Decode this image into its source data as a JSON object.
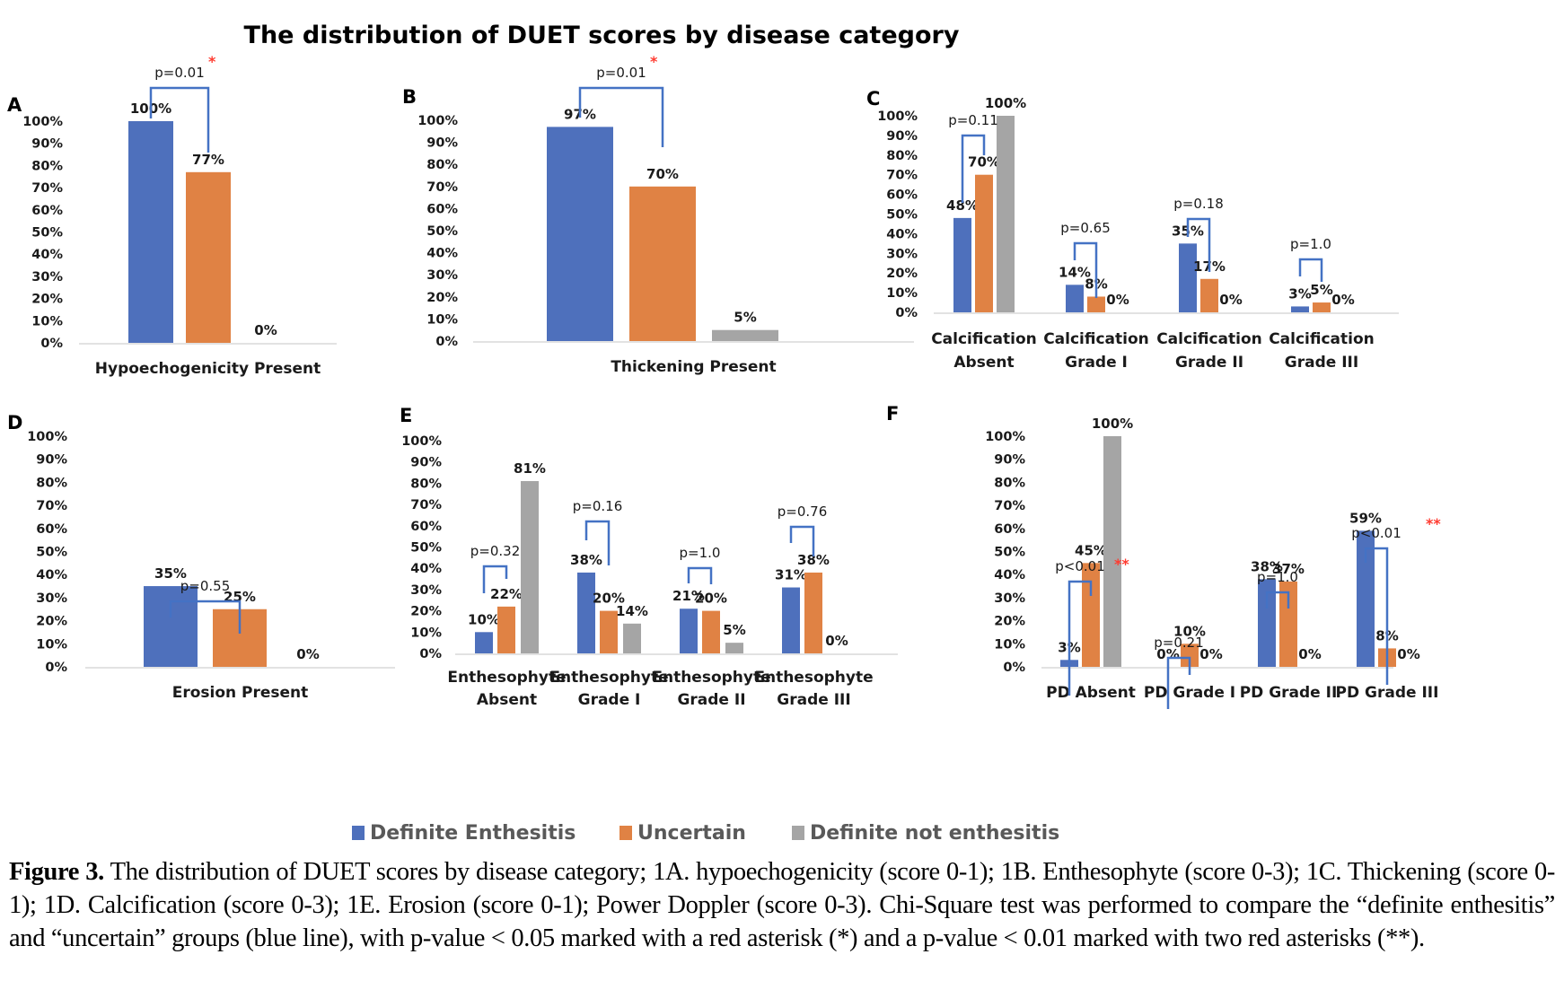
{
  "figure_title": "The distribution of DUET scores by disease category",
  "legend": [
    {
      "name": "Definite Enthesitis",
      "color": "#4E70BC"
    },
    {
      "name": "Uncertain",
      "color": "#E08244"
    },
    {
      "name": "Definite not enthesitis",
      "color": "#A5A5A5"
    }
  ],
  "colors": {
    "bracket": "#4472C4",
    "asterisk": "#FF3B30",
    "axis_line": "#D9D9D9",
    "text": "#1a1a1a"
  },
  "caption": {
    "label": "Figure 3.",
    "text": " The distribution of DUET scores by disease category; 1A. hypoechogenicity (score 0-1); 1B. Enthesophyte (score 0-3); 1C. Thickening (score 0-1); 1D. Calcification (score 0-3); 1E. Erosion (score 0-1); Power Doppler (score 0-3). Chi-Square test was performed to compare the “definite enthesitis” and “uncertain” groups (blue line), with p-value < 0.05 marked with a red asterisk (*) and a p-value < 0.01 marked with two red asterisks (**)."
  },
  "chart_data": [
    {
      "panel": "A",
      "type": "bar",
      "title": "",
      "xlabel": "",
      "ylabel": "",
      "ylim": [
        0,
        100
      ],
      "yticks": [
        "0%",
        "10%",
        "20%",
        "30%",
        "40%",
        "50%",
        "60%",
        "70%",
        "80%",
        "90%",
        "100%"
      ],
      "categories": [
        "Hypoechogenicity Present"
      ],
      "series": [
        {
          "name": "Definite Enthesitis",
          "values": [
            100
          ]
        },
        {
          "name": "Uncertain",
          "values": [
            77
          ]
        },
        {
          "name": "Definite not enthesitis",
          "values": [
            0
          ]
        }
      ],
      "data_labels": [
        [
          "100%"
        ],
        [
          "77%"
        ],
        [
          "0%"
        ]
      ],
      "comparisons": [
        {
          "category": 0,
          "p_label": "p=0.01",
          "asterisks": "*"
        }
      ],
      "grid": false
    },
    {
      "panel": "B",
      "type": "bar",
      "title": "",
      "xlabel": "",
      "ylabel": "",
      "ylim": [
        0,
        100
      ],
      "yticks": [
        "0%",
        "10%",
        "20%",
        "30%",
        "40%",
        "50%",
        "60%",
        "70%",
        "80%",
        "90%",
        "100%"
      ],
      "categories": [
        "Thickening Present"
      ],
      "series": [
        {
          "name": "Definite Enthesitis",
          "values": [
            97
          ]
        },
        {
          "name": "Uncertain",
          "values": [
            70
          ]
        },
        {
          "name": "Definite not enthesitis",
          "values": [
            5
          ]
        }
      ],
      "data_labels": [
        [
          "97%"
        ],
        [
          "70%"
        ],
        [
          "5%"
        ]
      ],
      "comparisons": [
        {
          "category": 0,
          "p_label": "p=0.01",
          "asterisks": "*"
        }
      ],
      "grid": false
    },
    {
      "panel": "C",
      "type": "bar",
      "title": "",
      "xlabel": "",
      "ylabel": "",
      "ylim": [
        0,
        100
      ],
      "yticks": [
        "0%",
        "10%",
        "20%",
        "30%",
        "40%",
        "50%",
        "60%",
        "70%",
        "80%",
        "90%",
        "100%"
      ],
      "categories": [
        "Calcification\nAbsent",
        "Calcification\nGrade I",
        "Calcification\nGrade II",
        "Calcification\nGrade III"
      ],
      "series": [
        {
          "name": "Definite Enthesitis",
          "values": [
            48,
            14,
            35,
            3
          ]
        },
        {
          "name": "Uncertain",
          "values": [
            70,
            8,
            17,
            5
          ]
        },
        {
          "name": "Definite not enthesitis",
          "values": [
            100,
            0,
            0,
            0
          ]
        }
      ],
      "data_labels": [
        [
          "48%",
          "14%",
          "35%",
          "3%"
        ],
        [
          "70%",
          "8%",
          "17%",
          "5%"
        ],
        [
          "100%",
          "0%",
          "0%",
          "0%"
        ]
      ],
      "comparisons": [
        {
          "category": 0,
          "p_label": "p=0.11",
          "asterisks": ""
        },
        {
          "category": 1,
          "p_label": "p=0.65",
          "asterisks": ""
        },
        {
          "category": 2,
          "p_label": "p=0.18",
          "asterisks": ""
        },
        {
          "category": 3,
          "p_label": "p=1.0",
          "asterisks": ""
        }
      ],
      "grid": false
    },
    {
      "panel": "D",
      "type": "bar",
      "title": "",
      "xlabel": "",
      "ylabel": "",
      "ylim": [
        0,
        100
      ],
      "yticks": [
        "0%",
        "10%",
        "20%",
        "30%",
        "40%",
        "50%",
        "60%",
        "70%",
        "80%",
        "90%",
        "100%"
      ],
      "categories": [
        "Erosion Present"
      ],
      "series": [
        {
          "name": "Definite Enthesitis",
          "values": [
            35
          ]
        },
        {
          "name": "Uncertain",
          "values": [
            25
          ]
        },
        {
          "name": "Definite not enthesitis",
          "values": [
            0
          ]
        }
      ],
      "data_labels": [
        [
          "35%"
        ],
        [
          "25%"
        ],
        [
          "0%"
        ]
      ],
      "comparisons": [
        {
          "category": 0,
          "p_label": "p=0.55",
          "asterisks": ""
        }
      ],
      "grid": false
    },
    {
      "panel": "E",
      "type": "bar",
      "title": "",
      "xlabel": "",
      "ylabel": "",
      "ylim": [
        0,
        100
      ],
      "yticks": [
        "0%",
        "10%",
        "20%",
        "30%",
        "40%",
        "50%",
        "60%",
        "70%",
        "80%",
        "90%",
        "100%"
      ],
      "categories": [
        "Enthesophyte\nAbsent",
        "Enthesophyte\nGrade I",
        "Enthesophyte\nGrade II",
        "Enthesophyte\nGrade III"
      ],
      "series": [
        {
          "name": "Definite Enthesitis",
          "values": [
            10,
            38,
            21,
            31
          ]
        },
        {
          "name": "Uncertain",
          "values": [
            22,
            20,
            20,
            38
          ]
        },
        {
          "name": "Definite not enthesitis",
          "values": [
            81,
            14,
            5,
            0
          ]
        }
      ],
      "data_labels": [
        [
          "10%",
          "38%",
          "21%",
          "31%"
        ],
        [
          "22%",
          "20%",
          "20%",
          "38%"
        ],
        [
          "81%",
          "14%",
          "5%",
          "0%"
        ]
      ],
      "comparisons": [
        {
          "category": 0,
          "p_label": "p=0.32",
          "asterisks": ""
        },
        {
          "category": 1,
          "p_label": "p=0.16",
          "asterisks": ""
        },
        {
          "category": 2,
          "p_label": "p=1.0",
          "asterisks": ""
        },
        {
          "category": 3,
          "p_label": "p=0.76",
          "asterisks": ""
        }
      ],
      "grid": false
    },
    {
      "panel": "F",
      "type": "bar",
      "title": "",
      "xlabel": "",
      "ylabel": "",
      "ylim": [
        0,
        100
      ],
      "yticks": [
        "0%",
        "10%",
        "20%",
        "30%",
        "40%",
        "50%",
        "60%",
        "70%",
        "80%",
        "90%",
        "100%"
      ],
      "categories": [
        "PD Absent",
        "PD Grade I",
        "PD Grade II",
        "PD Grade III"
      ],
      "series": [
        {
          "name": "Definite Enthesitis",
          "values": [
            3,
            0,
            38,
            59
          ]
        },
        {
          "name": "Uncertain",
          "values": [
            45,
            10,
            37,
            8
          ]
        },
        {
          "name": "Definite not enthesitis",
          "values": [
            100,
            0,
            0,
            0
          ]
        }
      ],
      "data_labels": [
        [
          "3%",
          "0%",
          "38%",
          "59%"
        ],
        [
          "45%",
          "10%",
          "37%",
          "8%"
        ],
        [
          "100%",
          "0%",
          "0%",
          "0%"
        ]
      ],
      "comparisons": [
        {
          "category": 0,
          "p_label": "p<0.01",
          "asterisks": "**"
        },
        {
          "category": 1,
          "p_label": "p=0.21",
          "asterisks": ""
        },
        {
          "category": 2,
          "p_label": "p=1.0",
          "asterisks": ""
        },
        {
          "category": 3,
          "p_label": "p<0.01",
          "asterisks": "**"
        }
      ],
      "grid": false
    }
  ]
}
